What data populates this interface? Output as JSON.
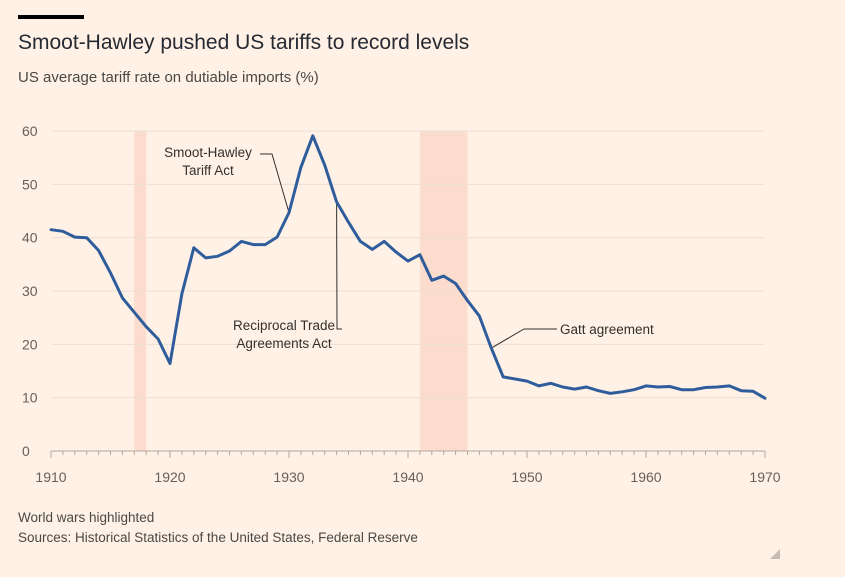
{
  "chart_data": {
    "type": "line",
    "title": "Smoot-Hawley pushed US tariffs to record levels",
    "subtitle": "US average tariff rate on dutiable imports (%)",
    "x": [
      1910,
      1911,
      1912,
      1913,
      1914,
      1915,
      1916,
      1917,
      1918,
      1919,
      1920,
      1921,
      1922,
      1923,
      1924,
      1925,
      1926,
      1927,
      1928,
      1929,
      1930,
      1931,
      1932,
      1933,
      1934,
      1935,
      1936,
      1937,
      1938,
      1939,
      1940,
      1941,
      1942,
      1943,
      1944,
      1945,
      1946,
      1947,
      1948,
      1949,
      1950,
      1951,
      1952,
      1953,
      1954,
      1955,
      1956,
      1957,
      1958,
      1959,
      1960,
      1961,
      1962,
      1963,
      1964,
      1965,
      1966,
      1967,
      1968,
      1969,
      1970
    ],
    "series": [
      {
        "name": "",
        "color": "#2f5d9b",
        "values": [
          41.5,
          41.2,
          40.1,
          40.0,
          37.6,
          33.4,
          28.7,
          26.0,
          23.3,
          21.0,
          16.4,
          29.5,
          38.1,
          36.2,
          36.5,
          37.5,
          39.3,
          38.7,
          38.7,
          40.1,
          44.7,
          53.2,
          59.1,
          53.6,
          46.7,
          42.9,
          39.3,
          37.8,
          39.3,
          37.3,
          35.6,
          36.8,
          32.0,
          32.8,
          31.4,
          28.2,
          25.3,
          19.3,
          13.9,
          13.5,
          13.1,
          12.2,
          12.7,
          12.0,
          11.6,
          12.0,
          11.3,
          10.8,
          11.1,
          11.5,
          12.2,
          12.0,
          12.1,
          11.5,
          11.5,
          11.9,
          12.0,
          12.2,
          11.3,
          11.2,
          9.9
        ]
      }
    ],
    "xlim": [
      1910,
      1970
    ],
    "ylim": [
      0,
      60
    ],
    "x_ticks": [
      1910,
      1920,
      1930,
      1940,
      1950,
      1960,
      1970
    ],
    "y_ticks": [
      0,
      10,
      20,
      30,
      40,
      50,
      60
    ],
    "grid": "horizontal",
    "highlights": [
      {
        "start": 1917,
        "end": 1918,
        "color": "#fcdccc"
      },
      {
        "start": 1941,
        "end": 1945,
        "color": "#fcdccc"
      }
    ],
    "annotations": [
      {
        "lines": [
          "Smoot-Hawley",
          "Tariff Act"
        ],
        "x": 1930,
        "y": 44.7
      },
      {
        "lines": [
          "Reciprocal Trade",
          "Agreements Act"
        ],
        "x": 1934,
        "y": 46.7
      },
      {
        "lines": [
          "Gatt agreement"
        ],
        "x": 1947,
        "y": 19.3
      }
    ],
    "note": "World wars highlighted",
    "source": "Sources: Historical Statistics of the United States, Federal Reserve"
  }
}
